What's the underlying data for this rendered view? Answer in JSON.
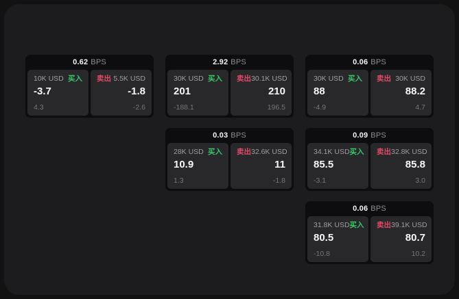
{
  "labels": {
    "bps_suffix": "BPS",
    "buy_label": "买入",
    "sell_label": "卖出"
  },
  "colors": {
    "buy": "#35c768",
    "sell": "#e04a66",
    "value_text": "#f7f7f8",
    "muted_text": "#9d9da3",
    "delta_text": "#76767b",
    "card_bg": "#0d0d0f",
    "subpanel_bg": "#28282b",
    "panel_bg": "#1c1c1e",
    "page_bg": "#121213"
  },
  "cards": [
    {
      "bps": "0.62",
      "row": 1,
      "col": 1,
      "buy": {
        "amount": "10K USD",
        "value": "-3.7",
        "delta": "4.3"
      },
      "sell": {
        "amount": "5.5K USD",
        "value": "-1.8",
        "delta": "-2.6"
      }
    },
    {
      "bps": "2.92",
      "row": 1,
      "col": 2,
      "buy": {
        "amount": "30K USD",
        "value": "201",
        "delta": "-188.1"
      },
      "sell": {
        "amount": "30.1K USD",
        "value": "210",
        "delta": "196.5"
      }
    },
    {
      "bps": "0.06",
      "row": 1,
      "col": 3,
      "buy": {
        "amount": "30K USD",
        "value": "88",
        "delta": "-4.9"
      },
      "sell": {
        "amount": "30K USD",
        "value": "88.2",
        "delta": "4.7"
      }
    },
    {
      "bps": "0.03",
      "row": 2,
      "col": 2,
      "buy": {
        "amount": "28K USD",
        "value": "10.9",
        "delta": "1.3"
      },
      "sell": {
        "amount": "32.6K USD",
        "value": "11",
        "delta": "-1.8"
      }
    },
    {
      "bps": "0.09",
      "row": 2,
      "col": 3,
      "buy": {
        "amount": "34.1K USD",
        "value": "85.5",
        "delta": "-3.1"
      },
      "sell": {
        "amount": "32.8K USD",
        "value": "85.8",
        "delta": "3.0"
      }
    },
    {
      "bps": "0.06",
      "row": 3,
      "col": 3,
      "buy": {
        "amount": "31.8K USD",
        "value": "80.5",
        "delta": "-10.8"
      },
      "sell": {
        "amount": "39.1K USD",
        "value": "80.7",
        "delta": "10.2"
      }
    }
  ]
}
